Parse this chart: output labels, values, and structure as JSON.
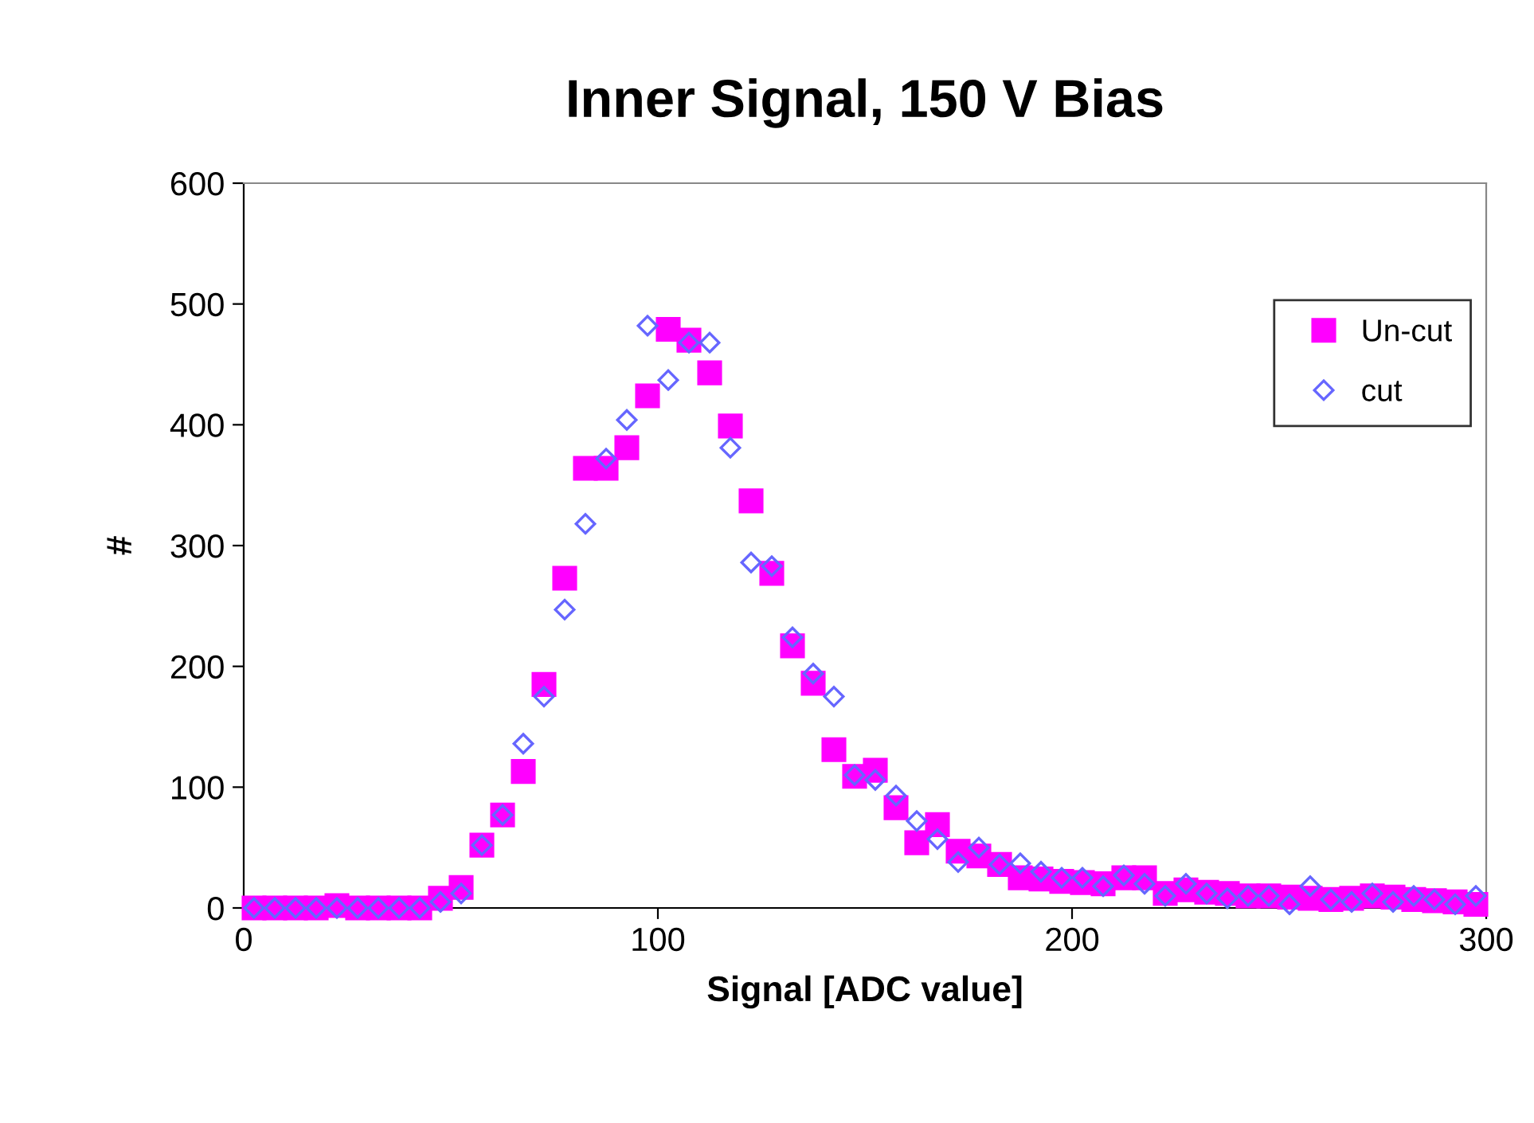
{
  "chart_data": {
    "type": "scatter",
    "title": "Inner Signal, 150 V Bias",
    "xlabel": "Signal [ADC value]",
    "ylabel": "#",
    "x": [
      2.5,
      7.5,
      12.5,
      17.5,
      22.5,
      27.5,
      32.5,
      37.5,
      42.5,
      47.5,
      52.5,
      57.5,
      62.5,
      67.5,
      72.5,
      77.5,
      82.5,
      87.5,
      92.5,
      97.5,
      102.5,
      107.5,
      112.5,
      117.5,
      122.5,
      127.5,
      132.5,
      137.5,
      142.5,
      147.5,
      152.5,
      157.5,
      162.5,
      167.5,
      172.5,
      177.5,
      182.5,
      187.5,
      192.5,
      197.5,
      202.5,
      207.5,
      212.5,
      217.5,
      222.5,
      227.5,
      232.5,
      237.5,
      242.5,
      247.5,
      252.5,
      257.5,
      262.5,
      267.5,
      272.5,
      277.5,
      282.5,
      287.5,
      292.5,
      297.5
    ],
    "series": [
      {
        "name": "Un-cut",
        "color": "#ff00ff",
        "marker": "square",
        "values": [
          0,
          0,
          0,
          0,
          2,
          0,
          0,
          0,
          0,
          8,
          17,
          52,
          77,
          113,
          185,
          273,
          364,
          364,
          381,
          424,
          479,
          470,
          443,
          399,
          337,
          277,
          217,
          186,
          131,
          109,
          114,
          83,
          54,
          69,
          47,
          43,
          36,
          25,
          24,
          22,
          21,
          20,
          25,
          25,
          12,
          15,
          13,
          12,
          10,
          10,
          9,
          8,
          7,
          8,
          10,
          9,
          7,
          6,
          5,
          3
        ]
      },
      {
        "name": "cut",
        "color": "#6666ff",
        "marker": "diamond",
        "values": [
          0,
          0,
          0,
          0,
          0,
          0,
          0,
          0,
          0,
          5,
          12,
          52,
          77,
          136,
          175,
          247,
          318,
          372,
          404,
          482,
          437,
          468,
          468,
          381,
          286,
          283,
          224,
          194,
          175,
          110,
          106,
          93,
          72,
          57,
          38,
          50,
          36,
          37,
          30,
          25,
          25,
          18,
          27,
          20,
          10,
          20,
          12,
          8,
          10,
          10,
          3,
          18,
          7,
          5,
          12,
          5,
          10,
          7,
          3,
          10
        ]
      }
    ],
    "xlim": [
      0,
      300
    ],
    "xticks": [
      0,
      100,
      200,
      300
    ],
    "ylim": [
      0,
      600
    ],
    "yticks": [
      0,
      100,
      200,
      300,
      400,
      500,
      600
    ],
    "grid": false,
    "legend": "top right"
  }
}
